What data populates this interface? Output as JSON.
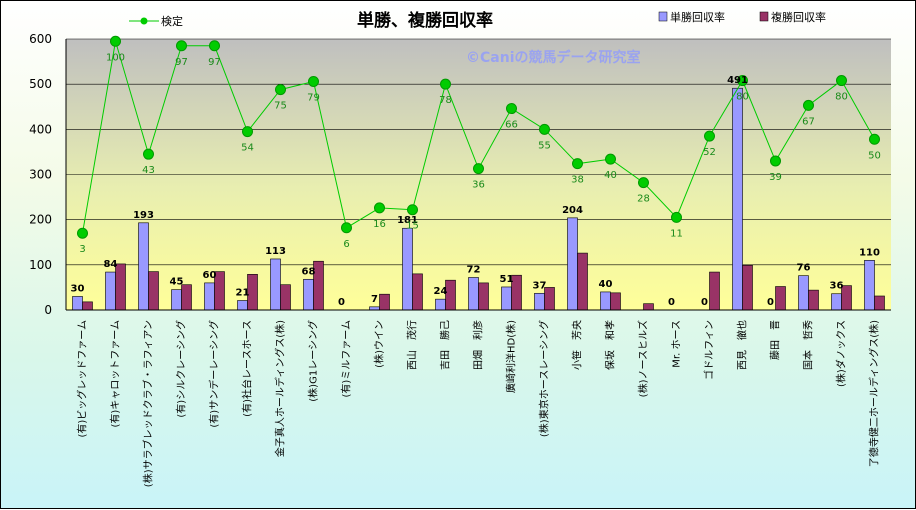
{
  "chart_data": {
    "type": "bar",
    "title": "単勝、複勝回収率",
    "watermark": "©Caniの競馬データ研究室",
    "ylim": [
      0,
      600
    ],
    "yticks": [
      0,
      100,
      200,
      300,
      400,
      500,
      600
    ],
    "grid": true,
    "legend_position": "top",
    "categories": [
      "(有)ビッグレッドファーム",
      "(有)キャロットファーム",
      "(株)サラブレッドクラブ・ラフィアン",
      "(有)シルクレーシング",
      "(有)サンデーレーシング",
      "(有)社台レースホース",
      "金子真人ホールディングス(株)",
      "(株)G1レーシング",
      "(有)ミルファーム",
      "(株)ウイン",
      "西山　茂行",
      "吉田　勝己",
      "田畑　利彦",
      "廣崎利洋HD(株)",
      "(株)東京ホースレーシング",
      "小笹　芳央",
      "保坂　和孝",
      "(株)ノースヒルズ",
      "Mr. ホース",
      "ゴドルフィン",
      "西見　徹也",
      "藤田　晋",
      "国本　哲秀",
      "(株)ダノックス",
      "了徳寺健二ホールディングス(株)"
    ],
    "series": [
      {
        "name": "単勝回収率",
        "color": "#9999ff",
        "values": [
          30,
          84,
          193,
          45,
          60,
          21,
          113,
          68,
          0,
          7,
          181,
          24,
          72,
          51,
          37,
          204,
          40,
          0,
          0,
          0,
          491,
          0,
          76,
          36,
          110
        ]
      },
      {
        "name": "複勝回収率",
        "color": "#993366",
        "values": [
          18,
          102,
          85,
          56,
          85,
          79,
          56,
          108,
          0,
          35,
          80,
          66,
          60,
          77,
          50,
          126,
          38,
          14,
          0,
          84,
          99,
          52,
          44,
          54,
          31
        ]
      },
      {
        "name": "検定",
        "color": "#00cc00",
        "type": "line",
        "values": [
          170,
          595,
          345,
          585,
          585,
          395,
          488,
          506,
          182,
          226,
          222,
          500,
          313,
          446,
          400,
          324,
          334,
          282,
          205,
          385,
          508,
          330,
          453,
          508,
          378
        ],
        "labels": [
          "3",
          "100",
          "43",
          "97",
          "97",
          "54",
          "75",
          "79",
          "6",
          "16",
          "15",
          "78",
          "36",
          "66",
          "55",
          "38",
          "40",
          "28",
          "11",
          "52",
          "80",
          "39",
          "67",
          "80",
          "50"
        ]
      }
    ],
    "bar_labels": [
      "30",
      "84",
      "193",
      "45",
      "60",
      "21",
      "113",
      "68",
      "0",
      "7",
      "181",
      "24",
      "72",
      "51",
      "37",
      "204",
      "40",
      "",
      "0",
      "0",
      "491",
      "0",
      "76",
      "36",
      "110"
    ]
  }
}
